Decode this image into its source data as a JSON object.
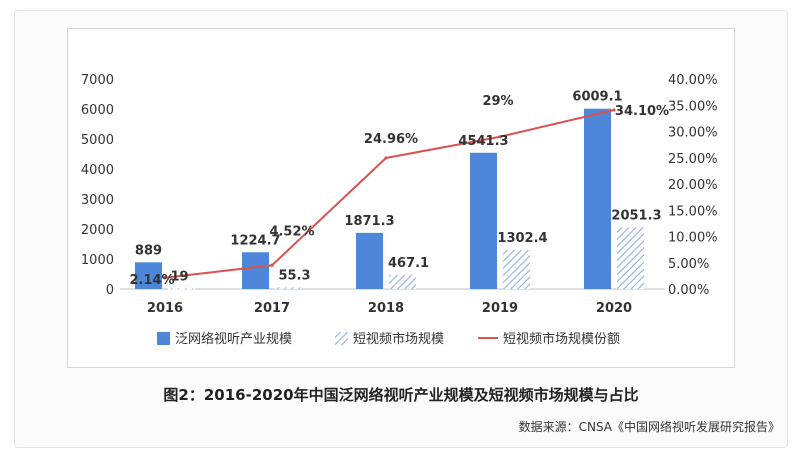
{
  "chart_data": {
    "type": "bar",
    "categories": [
      "2016",
      "2017",
      "2018",
      "2019",
      "2020"
    ],
    "series": [
      {
        "name": "泛网络视听产业规模",
        "kind": "bar",
        "style": "solid",
        "color": "#4e86d9",
        "axis": "left",
        "values": [
          889,
          1224.7,
          1871.3,
          4541.3,
          6009.1
        ],
        "labels": [
          "889",
          "1224.7",
          "1871.3",
          "4541.3",
          "6009.1"
        ]
      },
      {
        "name": "短视频市场规模",
        "kind": "bar",
        "style": "hatched",
        "color": "#9bb8e6",
        "axis": "left",
        "values": [
          19,
          55.3,
          467.1,
          1302.4,
          2051.3
        ],
        "labels": [
          "19",
          "55.3",
          "467.1",
          "1302.4",
          "2051.3"
        ]
      },
      {
        "name": "短视频市场规模份额",
        "kind": "line",
        "color": "#d9534f",
        "axis": "right",
        "values": [
          2.14,
          4.52,
          24.96,
          29,
          34.1
        ],
        "labels": [
          "2.14%",
          "4.52%",
          "24.96%",
          "29%",
          "34.10%"
        ]
      }
    ],
    "y_left": {
      "ylim": [
        0,
        7000
      ],
      "ticks": [
        "0",
        "1000",
        "2000",
        "3000",
        "4000",
        "5000",
        "6000",
        "7000"
      ]
    },
    "y_right": {
      "ylim": [
        0,
        40
      ],
      "ticks": [
        "0.00%",
        "5.00%",
        "10.00%",
        "15.00%",
        "20.00%",
        "25.00%",
        "30.00%",
        "35.00%",
        "40.00%"
      ]
    },
    "legend_position": "bottom",
    "grid": false
  },
  "caption": "图2：2016-2020年中国泛网络视听产业规模及短视频市场规模与占比",
  "source": "数据来源：CNSA《中国网络视听发展研究报告》"
}
